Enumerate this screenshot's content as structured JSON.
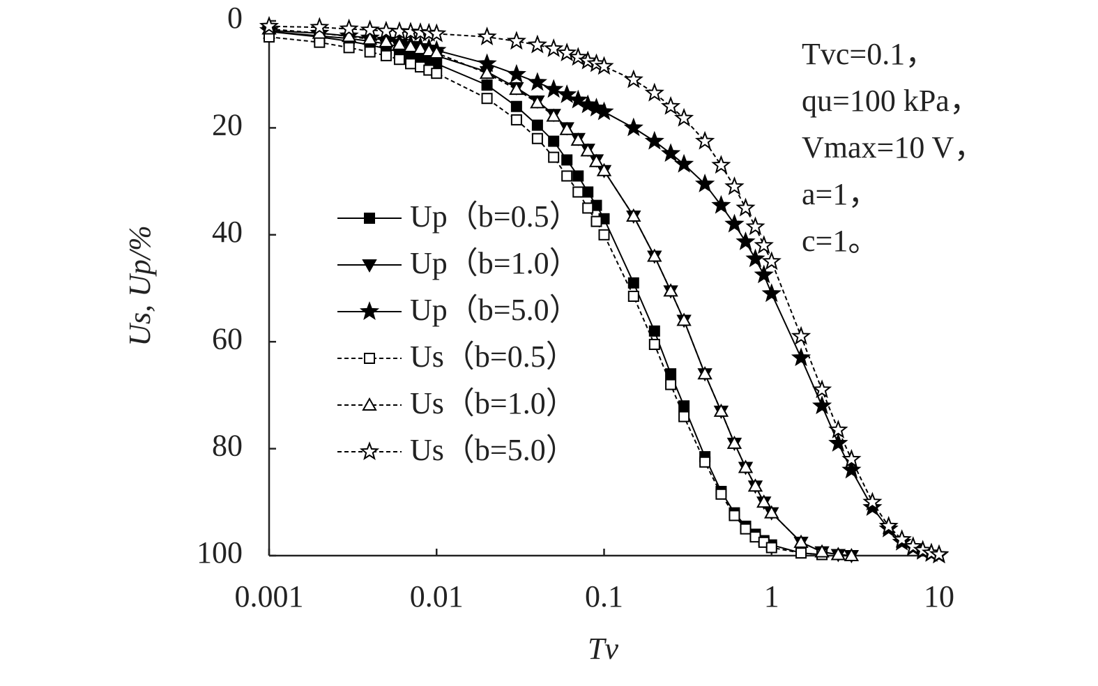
{
  "chart_data": {
    "type": "line",
    "xlabel": "Tv",
    "ylabel": "Us, Up/%",
    "xscale": "log",
    "y_inverted": true,
    "xlim": [
      0.001,
      10
    ],
    "xticks": [
      0.001,
      0.01,
      0.1,
      1,
      10
    ],
    "ylim": [
      0,
      100
    ],
    "yticks": [
      0,
      20,
      40,
      60,
      80,
      100
    ],
    "annotations": [
      "Tvc=0.1，",
      "qu=100 kPa，",
      "Vmax=10 V，",
      "a=1，",
      "c=1。"
    ],
    "x": [
      0.001,
      0.002,
      0.003,
      0.004,
      0.005,
      0.006,
      0.007,
      0.008,
      0.009,
      0.01,
      0.02,
      0.03,
      0.04,
      0.05,
      0.06,
      0.07,
      0.08,
      0.09,
      0.1,
      0.15,
      0.2,
      0.25,
      0.3,
      0.4,
      0.5,
      0.6,
      0.7,
      0.8,
      0.9,
      1,
      1.5,
      2,
      2.5,
      3,
      4,
      5,
      6,
      7,
      8,
      9,
      10
    ],
    "series": [
      {
        "name": "Up（b=0.5）",
        "color": "#000000",
        "marker": "square",
        "filled": true,
        "dashed": false,
        "values": [
          2,
          3,
          3.8,
          4.5,
          5.2,
          5.8,
          6.4,
          7,
          7.5,
          8,
          12,
          16,
          19.5,
          22.5,
          26,
          29,
          32,
          34.5,
          37,
          49,
          58,
          66,
          72,
          81.5,
          88,
          92,
          94.5,
          96,
          97.2,
          98,
          99.5,
          99.8,
          null,
          null,
          null,
          null,
          null,
          null,
          null,
          null,
          null
        ]
      },
      {
        "name": "Up（b=1.0）",
        "color": "#000000",
        "marker": "triangle-down",
        "filled": true,
        "dashed": false,
        "values": [
          2,
          2.8,
          3.3,
          3.8,
          4.3,
          4.8,
          5.2,
          5.6,
          6,
          6.5,
          9.5,
          12.5,
          15,
          17.5,
          20,
          22,
          24,
          26,
          28,
          36.5,
          44,
          50.5,
          56,
          66,
          73,
          79,
          83.5,
          87,
          90,
          92,
          97.5,
          99.3,
          99.8,
          100,
          null,
          null,
          null,
          null,
          null,
          null,
          null
        ]
      },
      {
        "name": "Up（b=5.0）",
        "color": "#000000",
        "marker": "star",
        "filled": true,
        "dashed": false,
        "values": [
          1.8,
          2.3,
          2.8,
          3.2,
          3.6,
          4,
          4.4,
          4.8,
          5.1,
          5.5,
          8,
          10,
          11.5,
          12.8,
          13.8,
          14.8,
          15.7,
          16.3,
          17,
          20,
          22.5,
          24.8,
          26.8,
          30.5,
          34.5,
          38,
          41.3,
          44.5,
          47.5,
          51,
          63,
          72,
          79,
          84,
          91,
          95,
          97.5,
          98.5,
          99.2,
          99.6,
          99.9
        ]
      },
      {
        "name": "Us（b=0.5）",
        "color": "#000000",
        "marker": "square",
        "filled": false,
        "dashed": true,
        "values": [
          3,
          4,
          5,
          5.8,
          6.5,
          7.2,
          8,
          8.6,
          9.2,
          9.8,
          14.5,
          18.5,
          22,
          25.5,
          29,
          32,
          35,
          37.5,
          40,
          51.5,
          60.5,
          68,
          74,
          82.5,
          88.5,
          92.5,
          95,
          96.5,
          97.5,
          98.5,
          99.5,
          99.8,
          null,
          null,
          null,
          null,
          null,
          null,
          null,
          null,
          null
        ]
      },
      {
        "name": "Us（b=1.0）",
        "color": "#000000",
        "marker": "triangle-up",
        "filled": false,
        "dashed": true,
        "values": [
          1.5,
          2.3,
          2.9,
          3.4,
          3.9,
          4.4,
          4.8,
          5.2,
          5.6,
          6,
          9.8,
          12.8,
          15.3,
          17.8,
          20.3,
          22.3,
          24.3,
          26.3,
          28,
          36.5,
          44,
          50.5,
          56,
          66,
          73,
          79,
          83.5,
          87,
          90,
          92,
          97.5,
          99.3,
          99.8,
          100,
          null,
          null,
          null,
          null,
          null,
          null,
          null
        ]
      },
      {
        "name": "Us（b=5.0）",
        "color": "#000000",
        "marker": "star",
        "filled": false,
        "dashed": true,
        "values": [
          1,
          1.2,
          1.5,
          1.7,
          1.9,
          2,
          2.1,
          2.2,
          2.3,
          2.4,
          3,
          3.8,
          4.5,
          5.2,
          6,
          6.8,
          7.5,
          8,
          8.5,
          11,
          13.5,
          16,
          18.2,
          22.5,
          27,
          31,
          35,
          38.5,
          42,
          45,
          59,
          69,
          76.5,
          82,
          90,
          94.5,
          97,
          98.3,
          99,
          99.5,
          99.8
        ]
      }
    ]
  }
}
